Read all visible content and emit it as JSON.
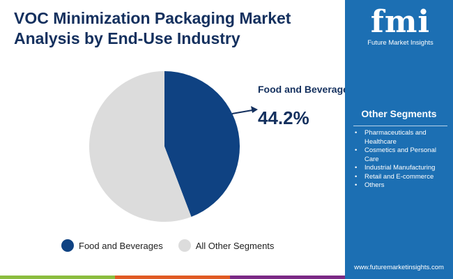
{
  "title": "VOC Minimization Packaging Market Analysis by End-Use Industry",
  "logo": {
    "mark": "fmi",
    "text": "Future Market Insights"
  },
  "sidebar": {
    "heading": "Other Segments",
    "items": [
      "Pharmaceuticals and Healthcare",
      "Cosmetics and Personal Care",
      "Industrial Manufacturing",
      "Retail and E-commerce",
      "Others"
    ],
    "url": "www.futuremarketinsights.com",
    "color": "#1c6fb3"
  },
  "chart_data": {
    "type": "pie",
    "title": "VOC Minimization Packaging Market Analysis by End-Use Industry",
    "categories": [
      "Food and Beverages",
      "All Other Segments"
    ],
    "values": [
      44.2,
      55.8
    ],
    "colors": [
      "#0f4282",
      "#dcdcdc"
    ],
    "legend_placement": "bottom",
    "annotation": {
      "label": "Food and Beverages",
      "value": "44.2%"
    }
  },
  "footer_colors": [
    "#8bbd3f",
    "#e05a24",
    "#7b2a85"
  ]
}
